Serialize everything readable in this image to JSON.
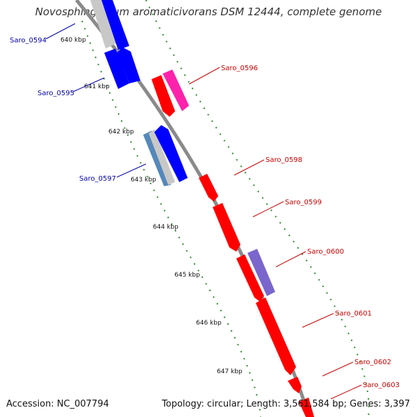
{
  "title": "Novosphingobium aromaticivorans DSM 12444, complete genome",
  "footer": {
    "accession": "Accession: NC_007794",
    "summary": "Topology: circular; Length: 3,561,584 bp; Genes: 3,397"
  },
  "colors": {
    "backbone": "#8a8a8a",
    "ruler": "#2e8b2e",
    "forward_label": "#cc0000",
    "reverse_label": "#0000aa",
    "red_gene": "#ff0000",
    "magenta_gene": "#ff22aa",
    "purple_gene": "#7a66cc",
    "blue_gene": "#0000ff",
    "steel_gene": "#5588bb",
    "grey_gene": "#c8c8c8"
  },
  "ruler_labels": [
    "640 kbp",
    "641 kbp",
    "642 kbp",
    "643 kbp",
    "644 kbp",
    "645 kbp",
    "646 kbp",
    "647 kbp"
  ],
  "gene_labels": [
    {
      "text": "Saro_0594",
      "strand": "reverse"
    },
    {
      "text": "Saro_0595",
      "strand": "reverse"
    },
    {
      "text": "Saro_0596",
      "strand": "forward"
    },
    {
      "text": "Saro_0597",
      "strand": "reverse"
    },
    {
      "text": "Saro_0598",
      "strand": "forward"
    },
    {
      "text": "Saro_0599",
      "strand": "forward"
    },
    {
      "text": "Saro_0600",
      "strand": "forward"
    },
    {
      "text": "Saro_0601",
      "strand": "forward"
    },
    {
      "text": "Saro_0602",
      "strand": "forward"
    },
    {
      "text": "Saro_0603",
      "strand": "forward"
    }
  ]
}
